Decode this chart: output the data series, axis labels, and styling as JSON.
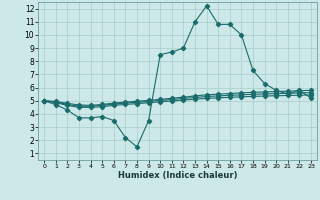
{
  "xlabel": "Humidex (Indice chaleur)",
  "background_color": "#cce8e8",
  "grid_color": "#aacccc",
  "line_color": "#1a6b6b",
  "xlim": [
    -0.5,
    23.5
  ],
  "ylim": [
    0.5,
    12.5
  ],
  "xticks": [
    0,
    1,
    2,
    3,
    4,
    5,
    6,
    7,
    8,
    9,
    10,
    11,
    12,
    13,
    14,
    15,
    16,
    17,
    18,
    19,
    20,
    21,
    22,
    23
  ],
  "yticks": [
    1,
    2,
    3,
    4,
    5,
    6,
    7,
    8,
    9,
    10,
    11,
    12
  ],
  "line1_x": [
    0,
    1,
    2,
    3,
    4,
    5,
    6,
    7,
    8,
    9,
    10,
    11,
    12,
    13,
    14,
    15,
    16,
    17,
    18,
    19,
    20,
    21,
    22,
    23
  ],
  "line1_y": [
    5.0,
    4.7,
    4.3,
    3.7,
    3.7,
    3.8,
    3.5,
    2.2,
    1.5,
    3.5,
    8.5,
    8.7,
    9.0,
    11.0,
    12.2,
    10.8,
    10.8,
    10.0,
    7.3,
    6.3,
    5.8,
    5.5,
    5.8,
    5.2
  ],
  "line2_x": [
    0,
    1,
    2,
    3,
    4,
    5,
    6,
    7,
    8,
    9,
    10,
    11,
    12,
    13,
    14,
    15,
    16,
    17,
    18,
    19,
    20,
    21,
    22,
    23
  ],
  "line2_y": [
    5.0,
    4.85,
    4.65,
    4.5,
    4.5,
    4.55,
    4.65,
    4.72,
    4.78,
    4.85,
    4.92,
    4.98,
    5.05,
    5.12,
    5.18,
    5.22,
    5.26,
    5.3,
    5.33,
    5.36,
    5.38,
    5.4,
    5.42,
    5.44
  ],
  "line3_x": [
    0,
    1,
    2,
    3,
    4,
    5,
    6,
    7,
    8,
    9,
    10,
    11,
    12,
    13,
    14,
    15,
    16,
    17,
    18,
    19,
    20,
    21,
    22,
    23
  ],
  "line3_y": [
    5.0,
    4.9,
    4.72,
    4.58,
    4.58,
    4.65,
    4.75,
    4.82,
    4.88,
    4.95,
    5.02,
    5.1,
    5.17,
    5.25,
    5.32,
    5.37,
    5.41,
    5.45,
    5.49,
    5.52,
    5.54,
    5.57,
    5.59,
    5.62
  ],
  "line4_x": [
    0,
    1,
    2,
    3,
    4,
    5,
    6,
    7,
    8,
    9,
    10,
    11,
    12,
    13,
    14,
    15,
    16,
    17,
    18,
    19,
    20,
    21,
    22,
    23
  ],
  "line4_y": [
    5.0,
    4.95,
    4.8,
    4.68,
    4.65,
    4.72,
    4.82,
    4.9,
    4.96,
    5.03,
    5.1,
    5.19,
    5.27,
    5.37,
    5.45,
    5.5,
    5.55,
    5.6,
    5.64,
    5.67,
    5.7,
    5.73,
    5.76,
    5.79
  ]
}
